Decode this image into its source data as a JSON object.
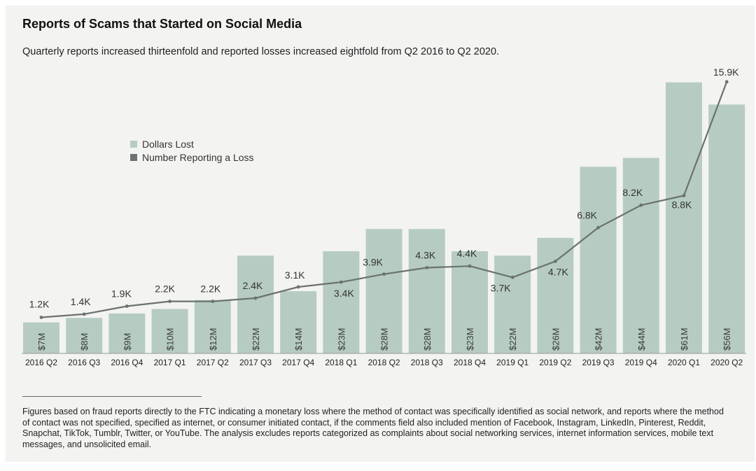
{
  "header": {
    "title": "Reports of Scams that Started on Social Media",
    "subtitle": "Quarterly reports increased thirteenfold and reported losses increased eightfold from Q2 2016 to Q2 2020."
  },
  "legend": {
    "items": [
      {
        "label": "Dollars Lost",
        "color": "#b6ccc2"
      },
      {
        "label": "Number Reporting a Loss",
        "color": "#6b726f"
      }
    ]
  },
  "footnote": {
    "text": "Figures based on fraud reports directly to the FTC indicating a monetary loss where the method of contact was specifically identified as social network, and reports where the method of contact was not specified, specified as internet, or consumer initiated contact, if the comments field also included mention of Facebook, Instagram, LinkedIn, Pinterest, Reddit, Snapchat, TikTok, Tumblr, Twitter, or YouTube. The analysis excludes reports categorized as complaints about social networking services, internet information services, mobile text messages, and unsolicited email."
  },
  "colors": {
    "bar": "#b6ccc2",
    "line": "#6b726f",
    "background": "#f3f3f2"
  },
  "chart_data": {
    "type": "bar",
    "title": "Reports of Scams that Started on Social Media",
    "categories": [
      "2016 Q2",
      "2016 Q3",
      "2016 Q4",
      "2017 Q1",
      "2017 Q2",
      "2017 Q3",
      "2017 Q4",
      "2018 Q1",
      "2018 Q2",
      "2018 Q3",
      "2018 Q4",
      "2019 Q1",
      "2019 Q2",
      "2019 Q3",
      "2019 Q4",
      "2020 Q1",
      "2020 Q2"
    ],
    "series": [
      {
        "name": "Dollars Lost",
        "type": "bar",
        "values": [
          7,
          8,
          9,
          10,
          12,
          22,
          14,
          23,
          28,
          28,
          23,
          22,
          26,
          42,
          44,
          61,
          56
        ],
        "labels": [
          "$7M",
          "$8M",
          "$9M",
          "$10M",
          "$12M",
          "$22M",
          "$14M",
          "$23M",
          "$28M",
          "$28M",
          "$23M",
          "$22M",
          "$26M",
          "$42M",
          "$44M",
          "$61M",
          "$56M"
        ],
        "unit": "millions of dollars"
      },
      {
        "name": "Number Reporting a Loss",
        "type": "line",
        "values": [
          1.2,
          1.4,
          1.9,
          2.2,
          2.2,
          2.4,
          3.1,
          3.4,
          3.9,
          4.3,
          4.4,
          3.7,
          4.7,
          6.8,
          8.2,
          8.8,
          15.9
        ],
        "labels": [
          "1.2K",
          "1.4K",
          "1.9K",
          "2.2K",
          "2.2K",
          "2.4K",
          "3.1K",
          "3.4K",
          "3.9K",
          "4.3K",
          "4.4K",
          "3.7K",
          "4.7K",
          "6.8K",
          "8.2K",
          "8.8K",
          "15.9K"
        ],
        "unit": "thousands of reports"
      }
    ],
    "grid": false,
    "legend_position": "top-left"
  }
}
